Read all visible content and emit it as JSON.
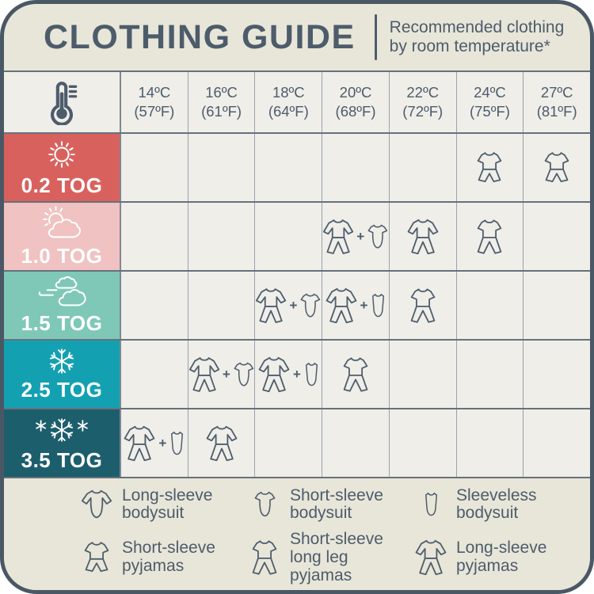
{
  "header": {
    "title": "CLOTHING GUIDE",
    "subtitle_line1": "Recommended clothing",
    "subtitle_line2": "by room temperature*"
  },
  "colors": {
    "card_background": "#e8e6d9",
    "cell_background": "#efeee9",
    "border_dark": "#4a5865",
    "text_slate": "#4d5c6b",
    "tog_02": "#d9615d",
    "tog_10": "#f0c2c1",
    "tog_15": "#7fc8b8",
    "tog_25": "#13a1b2",
    "tog_35": "#1d5e6d"
  },
  "table": {
    "plus": "+",
    "corner_icon": "thermometer-icon",
    "columns": [
      {
        "celsius": "14ºC",
        "fahrenheit": "(57ºF)"
      },
      {
        "celsius": "16ºC",
        "fahrenheit": "(61ºF)"
      },
      {
        "celsius": "18ºC",
        "fahrenheit": "(64ºF)"
      },
      {
        "celsius": "20ºC",
        "fahrenheit": "(68ºF)"
      },
      {
        "celsius": "22ºC",
        "fahrenheit": "(72ºF)"
      },
      {
        "celsius": "24ºC",
        "fahrenheit": "(75ºF)"
      },
      {
        "celsius": "27ºC",
        "fahrenheit": "(81ºF)"
      }
    ],
    "rows": [
      {
        "tog": "0.2 TOG",
        "icon": "sun-icon",
        "color": "#d9615d",
        "cells": [
          null,
          null,
          null,
          null,
          null,
          [
            "short-sleeve-pyjamas"
          ],
          [
            "short-sleeve-pyjamas"
          ]
        ]
      },
      {
        "tog": "1.0 TOG",
        "icon": "sun-cloud-icon",
        "color": "#f0c2c1",
        "cells": [
          null,
          null,
          null,
          [
            "long-sleeve-pyjamas",
            "short-sleeve-bodysuit"
          ],
          [
            "long-sleeve-pyjamas"
          ],
          [
            "short-sleeve-long-leg-pyjamas"
          ],
          null
        ]
      },
      {
        "tog": "1.5 TOG",
        "icon": "wind-cloud-icon",
        "color": "#7fc8b8",
        "cells": [
          null,
          null,
          [
            "long-sleeve-pyjamas",
            "short-sleeve-bodysuit"
          ],
          [
            "long-sleeve-pyjamas",
            "sleeveless-bodysuit"
          ],
          [
            "short-sleeve-long-leg-pyjamas"
          ],
          null,
          null
        ]
      },
      {
        "tog": "2.5 TOG",
        "icon": "snowflake-icon",
        "color": "#13a1b2",
        "cells": [
          null,
          [
            "long-sleeve-pyjamas",
            "short-sleeve-bodysuit"
          ],
          [
            "long-sleeve-pyjamas",
            "sleeveless-bodysuit"
          ],
          [
            "short-sleeve-long-leg-pyjamas"
          ],
          null,
          null,
          null
        ]
      },
      {
        "tog": "3.5 TOG",
        "icon": "snowflakes-icon",
        "color": "#1d5e6d",
        "cells": [
          [
            "long-sleeve-pyjamas",
            "sleeveless-bodysuit"
          ],
          [
            "long-sleeve-pyjamas"
          ],
          null,
          null,
          null,
          null,
          null
        ]
      }
    ]
  },
  "legend": {
    "items": [
      {
        "icon": "long-sleeve-bodysuit",
        "line1": "Long-sleeve",
        "line2": "bodysuit"
      },
      {
        "icon": "short-sleeve-bodysuit",
        "line1": "Short-sleeve",
        "line2": "bodysuit"
      },
      {
        "icon": "sleeveless-bodysuit",
        "line1": "Sleeveless",
        "line2": "bodysuit"
      },
      {
        "icon": "short-sleeve-pyjamas",
        "line1": "Short-sleeve",
        "line2": "pyjamas"
      },
      {
        "icon": "short-sleeve-long-leg-pyjamas",
        "line1": "Short-sleeve",
        "line2": "long leg pyjamas"
      },
      {
        "icon": "long-sleeve-pyjamas",
        "line1": "Long-sleeve",
        "line2": "pyjamas"
      }
    ]
  },
  "chart_data": {
    "type": "table",
    "title": "CLOTHING GUIDE",
    "subtitle": "Recommended clothing by room temperature*",
    "columns": [
      "14ºC (57ºF)",
      "16ºC (61ºF)",
      "18ºC (64ºF)",
      "20ºC (68ºF)",
      "22ºC (72ºF)",
      "24ºC (75ºF)",
      "27ºC (81ºF)"
    ],
    "rows": [
      {
        "tog": "0.2 TOG",
        "cells": {
          "24ºC": "short-sleeve pyjamas",
          "27ºC": "short-sleeve pyjamas"
        }
      },
      {
        "tog": "1.0 TOG",
        "cells": {
          "20ºC": "long-sleeve pyjamas + short-sleeve bodysuit",
          "22ºC": "long-sleeve pyjamas",
          "24ºC": "short-sleeve long leg pyjamas"
        }
      },
      {
        "tog": "1.5 TOG",
        "cells": {
          "18ºC": "long-sleeve pyjamas + short-sleeve bodysuit",
          "20ºC": "long-sleeve pyjamas + sleeveless bodysuit",
          "22ºC": "short-sleeve long leg pyjamas"
        }
      },
      {
        "tog": "2.5 TOG",
        "cells": {
          "16ºC": "long-sleeve pyjamas + short-sleeve bodysuit",
          "18ºC": "long-sleeve pyjamas + sleeveless bodysuit",
          "20ºC": "short-sleeve long leg pyjamas"
        }
      },
      {
        "tog": "3.5 TOG",
        "cells": {
          "14ºC": "long-sleeve pyjamas + sleeveless bodysuit",
          "16ºC": "long-sleeve pyjamas"
        }
      }
    ]
  }
}
